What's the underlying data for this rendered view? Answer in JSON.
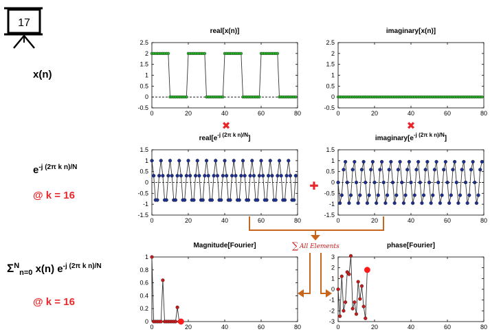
{
  "slide": {
    "number": "17",
    "row1_label": "x(n)",
    "row2_label_base": "e",
    "row2_label_exp": "-j (2π k n)/N",
    "row2_k": "@ k = 16",
    "row3_sigma": "Σ",
    "row3_sup": "N",
    "row3_sub": "n=0",
    "row3_body": "x(n) e",
    "row3_exp": "-j (2π k n)/N",
    "row3_k": "@ k = 16",
    "sum_label": "All Elements",
    "sum_symbol": "∑",
    "multiply_symbol": "✖",
    "plus_symbol": "✚",
    "colors": {
      "accent_red": "#e8262b",
      "arrow_orange": "#c8651d",
      "green_marker": "#27b327",
      "blue_marker": "#1c2f8f",
      "red_marker": "#c61a1a"
    }
  },
  "chart_data": [
    {
      "id": "realx",
      "type": "line",
      "title": "real[x(n)]",
      "xlim": [
        0,
        80
      ],
      "ylim": [
        -0.5,
        2.5
      ],
      "xticks": [
        0,
        20,
        40,
        60,
        80
      ],
      "yticks": [
        -0.5,
        0,
        0.5,
        1,
        1.5,
        2,
        2.5
      ],
      "xtick_labels": [
        "0",
        "20",
        "40",
        "60",
        "80"
      ],
      "ytick_labels": [
        "-0.5",
        "0",
        "0.5",
        "1",
        "1.5",
        "2",
        "2.5"
      ],
      "series": [
        {
          "values": [
            2,
            2,
            2,
            2,
            2,
            2,
            2,
            2,
            2,
            2,
            0,
            0,
            0,
            0,
            0,
            0,
            0,
            0,
            0,
            0,
            2,
            2,
            2,
            2,
            2,
            2,
            2,
            2,
            2,
            2,
            0,
            0,
            0,
            0,
            0,
            0,
            0,
            0,
            0,
            0,
            2,
            2,
            2,
            2,
            2,
            2,
            2,
            2,
            2,
            2,
            0,
            0,
            0,
            0,
            0,
            0,
            0,
            0,
            0,
            0,
            2,
            2,
            2,
            2,
            2,
            2,
            2,
            2,
            2,
            2,
            0,
            0,
            0,
            0,
            0,
            0,
            0,
            0,
            0,
            0
          ]
        }
      ]
    },
    {
      "id": "imagx",
      "type": "line",
      "title": "imaginary[x(n)]",
      "xlim": [
        0,
        80
      ],
      "ylim": [
        -0.5,
        2.5
      ],
      "xticks": [
        0,
        20,
        40,
        60,
        80
      ],
      "yticks": [
        -0.5,
        0,
        0.5,
        1,
        1.5,
        2,
        2.5
      ],
      "xtick_labels": [
        "0",
        "20",
        "40",
        "60",
        "80"
      ],
      "ytick_labels": [
        "-0.5",
        "0",
        "0.5",
        "1",
        "1.5",
        "2",
        "2.5"
      ],
      "series": [
        {
          "values": [
            0,
            0,
            0,
            0,
            0,
            0,
            0,
            0,
            0,
            0,
            0,
            0,
            0,
            0,
            0,
            0,
            0,
            0,
            0,
            0,
            0,
            0,
            0,
            0,
            0,
            0,
            0,
            0,
            0,
            0,
            0,
            0,
            0,
            0,
            0,
            0,
            0,
            0,
            0,
            0,
            0,
            0,
            0,
            0,
            0,
            0,
            0,
            0,
            0,
            0,
            0,
            0,
            0,
            0,
            0,
            0,
            0,
            0,
            0,
            0,
            0,
            0,
            0,
            0,
            0,
            0,
            0,
            0,
            0,
            0,
            0,
            0,
            0,
            0,
            0,
            0,
            0,
            0,
            0,
            0
          ]
        }
      ]
    },
    {
      "id": "realk",
      "type": "line",
      "title": "real[e",
      "title_sup": "-j (2π k n)/N",
      "title_end": "]",
      "xlim": [
        0,
        80
      ],
      "ylim": [
        -1.5,
        1.5
      ],
      "xticks": [
        0,
        20,
        40,
        60,
        80
      ],
      "yticks": [
        -1.5,
        -1,
        -0.5,
        0,
        0.5,
        1,
        1.5
      ],
      "xtick_labels": [
        "0",
        "20",
        "40",
        "60",
        "80"
      ],
      "ytick_labels": [
        "-1.5",
        "-1",
        "-0.5",
        "0",
        "0.5",
        "1",
        "1.5"
      ],
      "series": [
        {
          "values": [
            1,
            0.309,
            -0.809,
            -0.809,
            0.309,
            1,
            0.309,
            -0.809,
            -0.809,
            0.309,
            1,
            0.309,
            -0.809,
            -0.809,
            0.309,
            1,
            0.309,
            -0.809,
            -0.809,
            0.309,
            1,
            0.309,
            -0.809,
            -0.809,
            0.309,
            1,
            0.309,
            -0.809,
            -0.809,
            0.309,
            1,
            0.309,
            -0.809,
            -0.809,
            0.309,
            1,
            0.309,
            -0.809,
            -0.809,
            0.309,
            1,
            0.309,
            -0.809,
            -0.809,
            0.309,
            1,
            0.309,
            -0.809,
            -0.809,
            0.309,
            1,
            0.309,
            -0.809,
            -0.809,
            0.309,
            1,
            0.309,
            -0.809,
            -0.809,
            0.309,
            1,
            0.309,
            -0.809,
            -0.809,
            0.309,
            1,
            0.309,
            -0.809,
            -0.809,
            0.309,
            1,
            0.309,
            -0.809,
            -0.809,
            0.309,
            1,
            0.309,
            -0.809,
            -0.809,
            0.309
          ]
        }
      ]
    },
    {
      "id": "imagk",
      "type": "line",
      "title": "imaginary[e",
      "title_sup": "-j (2π k n)/N",
      "title_end": "]",
      "xlim": [
        0,
        80
      ],
      "ylim": [
        -1.5,
        1.5
      ],
      "xticks": [
        0,
        20,
        40,
        60,
        80
      ],
      "yticks": [
        -1.5,
        -1,
        -0.5,
        0,
        0.5,
        1,
        1.5
      ],
      "xtick_labels": [
        "0",
        "20",
        "40",
        "60",
        "80"
      ],
      "ytick_labels": [
        "-1.5",
        "-1",
        "-0.5",
        "0",
        "0.5",
        "1",
        "1.5"
      ],
      "series": [
        {
          "values": [
            0,
            -0.951,
            -0.588,
            0.588,
            0.951,
            0,
            -0.951,
            -0.588,
            0.588,
            0.951,
            0,
            -0.951,
            -0.588,
            0.588,
            0.951,
            0,
            -0.951,
            -0.588,
            0.588,
            0.951,
            0,
            -0.951,
            -0.588,
            0.588,
            0.951,
            0,
            -0.951,
            -0.588,
            0.588,
            0.951,
            0,
            -0.951,
            -0.588,
            0.588,
            0.951,
            0,
            -0.951,
            -0.588,
            0.588,
            0.951,
            0,
            -0.951,
            -0.588,
            0.588,
            0.951,
            0,
            -0.951,
            -0.588,
            0.588,
            0.951,
            0,
            -0.951,
            -0.588,
            0.588,
            0.951,
            0,
            -0.951,
            -0.588,
            0.588,
            0.951,
            0,
            -0.951,
            -0.588,
            0.588,
            0.951,
            0,
            -0.951,
            -0.588,
            0.588,
            0.951,
            0,
            -0.951,
            -0.588,
            0.588,
            0.951,
            0,
            -0.951,
            -0.588,
            0.588,
            0.951
          ]
        }
      ]
    },
    {
      "id": "mag",
      "type": "line",
      "title": "Magnitude[Fourier]",
      "xlim": [
        0,
        80
      ],
      "ylim": [
        0,
        1
      ],
      "xticks": [
        0,
        20,
        40,
        60,
        80
      ],
      "yticks": [
        0,
        0.2,
        0.4,
        0.6,
        0.8,
        1
      ],
      "xtick_labels": [
        "0",
        "20",
        "40",
        "60",
        "80"
      ],
      "ytick_labels": [
        "0",
        "0.2",
        "0.4",
        "0.6",
        "0.8",
        "1"
      ],
      "series": [
        {
          "x": [
            0,
            1,
            2,
            3,
            4,
            5,
            6,
            7,
            8,
            9,
            10,
            11,
            12,
            13,
            14,
            15,
            16
          ],
          "values": [
            1,
            0,
            0,
            0,
            0,
            0,
            0.64,
            0,
            0,
            0,
            0,
            0,
            0,
            0,
            0.22,
            0,
            0
          ]
        }
      ],
      "highlight": {
        "x": 16,
        "y": 0
      }
    },
    {
      "id": "phase",
      "type": "line",
      "title": "phase[Fourier]",
      "xlim": [
        0,
        80
      ],
      "ylim": [
        -3,
        3
      ],
      "xticks": [
        0,
        20,
        40,
        60,
        80
      ],
      "yticks": [
        -3,
        -2,
        -1,
        0,
        1,
        2,
        3
      ],
      "xtick_labels": [
        "0",
        "20",
        "40",
        "60",
        "80"
      ],
      "ytick_labels": [
        "-3",
        "-2",
        "-1",
        "0",
        "1",
        "2",
        "3"
      ],
      "series": [
        {
          "x": [
            0,
            1,
            2,
            3,
            4,
            5,
            6,
            7,
            8,
            9,
            10,
            11,
            12,
            13,
            14,
            15,
            16
          ],
          "values": [
            0,
            -2.5,
            1.2,
            -2,
            -1.2,
            1.6,
            1.4,
            3.1,
            -1.8,
            -1.2,
            -2.3,
            0.7,
            -0.9,
            0.3,
            -1.6,
            -2.7,
            1.8
          ]
        }
      ],
      "highlight": {
        "x": 16,
        "y": 1.8
      }
    }
  ]
}
